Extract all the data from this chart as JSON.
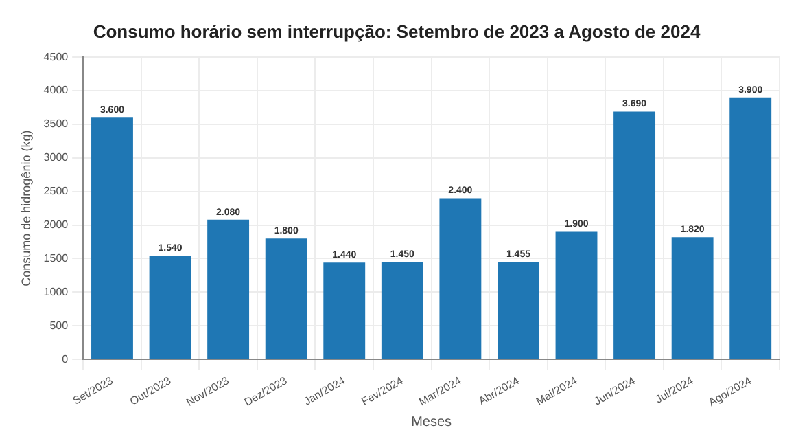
{
  "chart_data": {
    "type": "bar",
    "title": "Consumo horário sem interrupção: Setembro de 2023 a Agosto de 2024",
    "xlabel": "Meses",
    "ylabel": "Consumo de hidrogênio (kg)",
    "categories": [
      "Set/2023",
      "Out/2023",
      "Nov/2023",
      "Dez/2023",
      "Jan/2024",
      "Fev/2024",
      "Mar/2024",
      "Abr/2024",
      "Mai/2024",
      "Jun/2024",
      "Jul/2024",
      "Ago/2024"
    ],
    "values": [
      3600,
      1540,
      2080,
      1800,
      1440,
      1450,
      2400,
      1455,
      1900,
      3690,
      1820,
      3900
    ],
    "value_labels": [
      "3.600",
      "1.540",
      "2.080",
      "1.800",
      "1.440",
      "1.450",
      "2.400",
      "1.455",
      "1.900",
      "3.690",
      "1.820",
      "3.900"
    ],
    "color": "#1f77b4",
    "ylim": [
      0,
      4500
    ],
    "yticks": [
      0,
      500,
      1000,
      1500,
      2000,
      2500,
      3000,
      3500,
      4000,
      4500
    ],
    "grid": true
  }
}
